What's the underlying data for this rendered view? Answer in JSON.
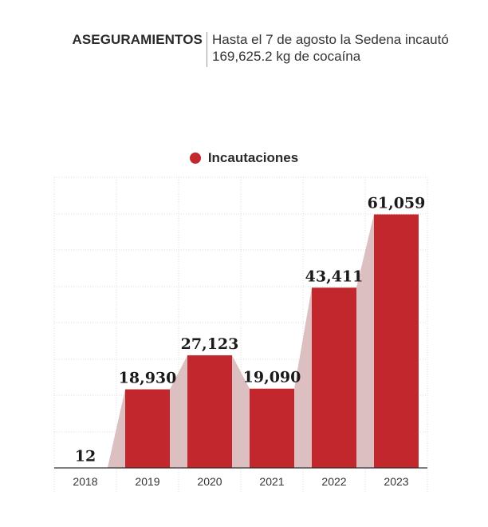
{
  "header": {
    "kicker": "ASEGURAMIENTOS",
    "subtitle": "Hasta el 7 de agosto la Sedena incautó 169,625.2 kg de cocaína"
  },
  "colors": {
    "bar": "#c1272d",
    "connector": "#dcbfc1",
    "grid": "#dedede",
    "axis": "#333333"
  },
  "chart_data": {
    "type": "bar",
    "categories": [
      "2018",
      "2019",
      "2020",
      "2021",
      "2022",
      "2023"
    ],
    "series": [
      {
        "name": "Incautaciones",
        "values": [
          12,
          18930,
          27123,
          19090,
          43411,
          61059
        ]
      }
    ],
    "value_labels": [
      "12",
      "18,930",
      "27,123",
      "19,090",
      "43,411",
      "61,059"
    ],
    "ylim": [
      0,
      70000
    ],
    "grid": true,
    "legend": "top-center"
  }
}
